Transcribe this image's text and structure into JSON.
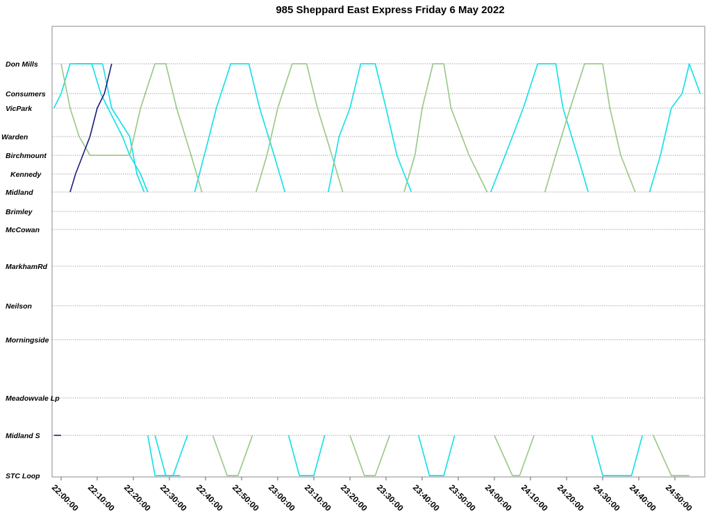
{
  "chart_data": {
    "type": "line",
    "title": "985 Sheppard East Express Friday 6 May 2022",
    "xlabel": "",
    "ylabel": "",
    "x_range": [
      "22:00:00",
      "25:00:00"
    ],
    "x_ticks": [
      "22:00:00",
      "22:10:00",
      "22:20:00",
      "22:30:00",
      "22:40:00",
      "22:50:00",
      "23:00:00",
      "23:10:00",
      "23:20:00",
      "23:30:00",
      "23:40:00",
      "23:50:00",
      "24:00:00",
      "24:10:00",
      "24:20:00",
      "24:30:00",
      "24:40:00",
      "24:50:00"
    ],
    "stops": [
      "Don Mills",
      "Consumers",
      "VicPark",
      "Warden",
      "Birchmount",
      "Kennedy",
      "Midland",
      "Brimley",
      "McCowan",
      "MarkhamRd",
      "Neilson",
      "Morningside",
      "Meadowvale Lp",
      "Midland S",
      "STC Loop"
    ],
    "grid": "horizontal dotted lines at stops",
    "colors": {
      "cyan": "#19e0e8",
      "green": "#9cc98a",
      "navy": "#1a1a7a"
    },
    "series": [
      {
        "color": "cyan",
        "points": [
          [
            "21:58:00",
            "VicPark"
          ],
          [
            "22:00:00",
            "Consumers"
          ],
          [
            "22:02:30",
            "Don Mills"
          ],
          [
            "22:08:30",
            "Don Mills"
          ],
          [
            "22:11:00",
            "Consumers"
          ],
          [
            "22:13:00",
            "VicPark"
          ],
          [
            "22:17:00",
            "Warden"
          ],
          [
            "22:19:00",
            "Birchmount"
          ],
          [
            "22:22:00",
            "Kennedy"
          ],
          [
            "22:24:00",
            "Midland"
          ]
        ]
      },
      {
        "color": "cyan",
        "points": [
          [
            "22:04:00",
            "Don Mills"
          ],
          [
            "22:11:30",
            "Don Mills"
          ],
          [
            "22:14:00",
            "VicPark"
          ],
          [
            "22:19:00",
            "Warden"
          ],
          [
            "22:21:00",
            "Kennedy"
          ],
          [
            "22:23:00",
            "Midland"
          ]
        ]
      },
      {
        "color": "cyan",
        "points": [
          [
            "22:24:00",
            "Midland S"
          ],
          [
            "22:26:00",
            "STC Loop"
          ],
          [
            "22:31:00",
            "STC Loop"
          ],
          [
            "22:35:00",
            "Midland S"
          ]
        ]
      },
      {
        "color": "cyan",
        "points": [
          [
            "22:26:00",
            "Midland S"
          ],
          [
            "22:29:00",
            "STC Loop"
          ],
          [
            "22:33:00",
            "STC Loop"
          ]
        ]
      },
      {
        "color": "cyan",
        "points": [
          [
            "22:37:00",
            "Midland"
          ],
          [
            "22:41:00",
            "Warden"
          ],
          [
            "22:43:00",
            "VicPark"
          ],
          [
            "22:47:00",
            "Don Mills"
          ],
          [
            "22:52:00",
            "Don Mills"
          ],
          [
            "22:55:00",
            "VicPark"
          ],
          [
            "22:59:00",
            "Birchmount"
          ],
          [
            "23:02:00",
            "Midland"
          ]
        ]
      },
      {
        "color": "cyan",
        "points": [
          [
            "23:03:00",
            "Midland S"
          ],
          [
            "23:06:00",
            "STC Loop"
          ],
          [
            "23:10:00",
            "STC Loop"
          ],
          [
            "23:13:00",
            "Midland S"
          ]
        ]
      },
      {
        "color": "cyan",
        "points": [
          [
            "23:14:00",
            "Midland"
          ],
          [
            "23:17:00",
            "Warden"
          ],
          [
            "23:20:00",
            "VicPark"
          ],
          [
            "23:23:00",
            "Don Mills"
          ],
          [
            "23:27:00",
            "Don Mills"
          ],
          [
            "23:30:00",
            "VicPark"
          ],
          [
            "23:33:00",
            "Birchmount"
          ],
          [
            "23:37:00",
            "Midland"
          ]
        ]
      },
      {
        "color": "cyan",
        "points": [
          [
            "23:39:00",
            "Midland S"
          ],
          [
            "23:42:00",
            "STC Loop"
          ],
          [
            "23:46:00",
            "STC Loop"
          ],
          [
            "23:49:00",
            "Midland S"
          ]
        ]
      },
      {
        "color": "cyan",
        "points": [
          [
            "23:59:00",
            "Midland"
          ],
          [
            "24:03:00",
            "Birchmount"
          ],
          [
            "24:05:00",
            "Warden"
          ],
          [
            "24:08:00",
            "VicPark"
          ],
          [
            "24:12:00",
            "Don Mills"
          ],
          [
            "24:17:00",
            "Don Mills"
          ],
          [
            "24:19:00",
            "VicPark"
          ],
          [
            "24:23:00",
            "Birchmount"
          ],
          [
            "24:26:00",
            "Midland"
          ]
        ]
      },
      {
        "color": "cyan",
        "points": [
          [
            "24:27:00",
            "Midland S"
          ],
          [
            "24:30:00",
            "STC Loop"
          ],
          [
            "24:38:00",
            "STC Loop"
          ],
          [
            "24:41:00",
            "Midland S"
          ]
        ]
      },
      {
        "color": "cyan",
        "points": [
          [
            "24:43:00",
            "Midland"
          ],
          [
            "24:46:00",
            "Birchmount"
          ],
          [
            "24:49:00",
            "VicPark"
          ],
          [
            "24:52:00",
            "Consumers"
          ],
          [
            "24:54:00",
            "Don Mills"
          ],
          [
            "24:57:00",
            "Consumers"
          ]
        ]
      },
      {
        "color": "green",
        "points": [
          [
            "22:00:00",
            "Don Mills"
          ],
          [
            "22:02:30",
            "VicPark"
          ],
          [
            "22:05:00",
            "Warden"
          ],
          [
            "22:08:00",
            "Birchmount"
          ],
          [
            "22:19:00",
            "Birchmount"
          ],
          [
            "22:22:00",
            "VicPark"
          ],
          [
            "22:26:00",
            "Don Mills"
          ],
          [
            "22:29:00",
            "Don Mills"
          ],
          [
            "22:32:00",
            "VicPark"
          ],
          [
            "22:36:00",
            "Birchmount"
          ],
          [
            "22:39:00",
            "Midland"
          ]
        ]
      },
      {
        "color": "green",
        "points": [
          [
            "22:42:00",
            "Midland S"
          ],
          [
            "22:46:00",
            "STC Loop"
          ],
          [
            "22:49:00",
            "STC Loop"
          ],
          [
            "22:53:00",
            "Midland S"
          ]
        ]
      },
      {
        "color": "green",
        "points": [
          [
            "22:54:00",
            "Midland"
          ],
          [
            "22:57:00",
            "Birchmount"
          ],
          [
            "23:00:00",
            "VicPark"
          ],
          [
            "23:04:00",
            "Don Mills"
          ],
          [
            "23:08:00",
            "Don Mills"
          ],
          [
            "23:11:00",
            "VicPark"
          ],
          [
            "23:15:00",
            "Birchmount"
          ],
          [
            "23:18:00",
            "Midland"
          ]
        ]
      },
      {
        "color": "green",
        "points": [
          [
            "23:20:00",
            "Midland S"
          ],
          [
            "23:24:00",
            "STC Loop"
          ],
          [
            "23:27:00",
            "STC Loop"
          ],
          [
            "23:31:00",
            "Midland S"
          ]
        ]
      },
      {
        "color": "green",
        "points": [
          [
            "23:35:00",
            "Midland"
          ],
          [
            "23:38:00",
            "Birchmount"
          ],
          [
            "23:40:00",
            "VicPark"
          ],
          [
            "23:43:00",
            "Don Mills"
          ],
          [
            "23:46:00",
            "Don Mills"
          ],
          [
            "23:48:00",
            "VicPark"
          ],
          [
            "23:53:00",
            "Birchmount"
          ],
          [
            "23:58:00",
            "Midland"
          ]
        ]
      },
      {
        "color": "green",
        "points": [
          [
            "24:00:00",
            "Midland S"
          ],
          [
            "24:05:00",
            "STC Loop"
          ],
          [
            "24:07:00",
            "STC Loop"
          ],
          [
            "24:11:00",
            "Midland S"
          ]
        ]
      },
      {
        "color": "green",
        "points": [
          [
            "24:14:00",
            "Midland"
          ],
          [
            "24:17:00",
            "Birchmount"
          ],
          [
            "24:21:00",
            "VicPark"
          ],
          [
            "24:25:00",
            "Don Mills"
          ],
          [
            "24:30:00",
            "Don Mills"
          ],
          [
            "24:32:00",
            "VicPark"
          ],
          [
            "24:35:00",
            "Birchmount"
          ],
          [
            "24:39:00",
            "Midland"
          ]
        ]
      },
      {
        "color": "green",
        "points": [
          [
            "24:44:00",
            "Midland S"
          ],
          [
            "24:49:00",
            "STC Loop"
          ],
          [
            "24:54:00",
            "STC Loop"
          ]
        ]
      },
      {
        "color": "navy",
        "points": [
          [
            "22:02:30",
            "Midland"
          ],
          [
            "22:04:00",
            "Kennedy"
          ],
          [
            "22:06:00",
            "Birchmount"
          ],
          [
            "22:08:00",
            "Warden"
          ],
          [
            "22:10:00",
            "VicPark"
          ],
          [
            "22:12:00",
            "Consumers"
          ],
          [
            "22:14:00",
            "Don Mills"
          ]
        ]
      },
      {
        "color": "navy",
        "points": [
          [
            "21:58:00",
            "Midland S"
          ],
          [
            "21:59:30",
            "Midland S"
          ],
          [
            "22:00:00",
            "Midland S"
          ]
        ]
      }
    ]
  }
}
